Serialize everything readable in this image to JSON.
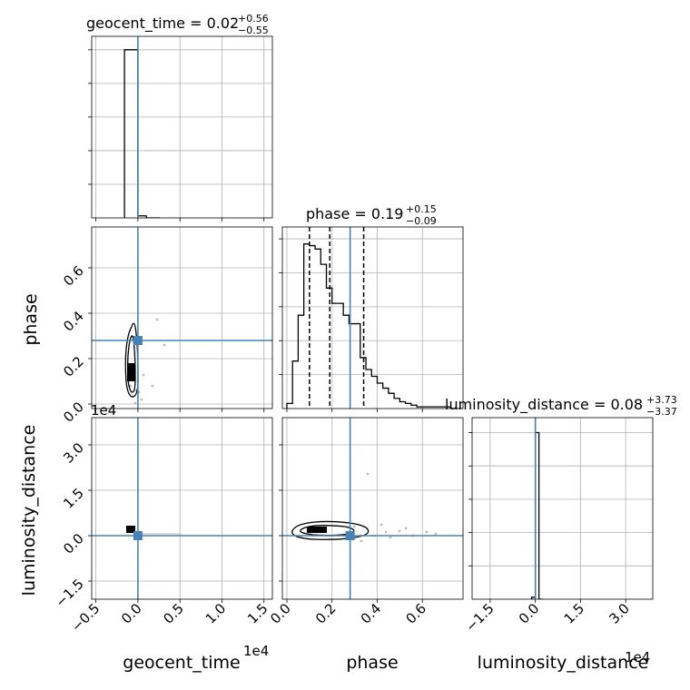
{
  "chart_data": {
    "type": "corner",
    "parameters": [
      "geocent_time",
      "phase",
      "luminosity_distance"
    ],
    "truths": {
      "geocent_time": 0.0,
      "phase": 0.28,
      "luminosity_distance": 0.0
    },
    "colors": {
      "truth": "#4682b4",
      "hist": "#000000",
      "grid": "#b0b0b0",
      "scatter": "#bbbbbb"
    },
    "titles": [
      {
        "param": "geocent_time",
        "main": "geocent_time = 0.02",
        "upper": "+0.56",
        "lower": "−0.55"
      },
      {
        "param": "phase",
        "main": "phase = 0.19",
        "upper": "+0.15",
        "lower": "−0.09"
      },
      {
        "param": "luminosity_distance",
        "main": "luminosity_distance = 0.08",
        "upper": "+3.73",
        "lower": "−3.37"
      }
    ],
    "ranges": {
      "geocent_time": [
        -0.55,
        1.6
      ],
      "phase": [
        -0.02,
        0.78
      ],
      "luminosity_distance": [
        -2.1,
        3.9
      ]
    },
    "exponent_label": "1e4",
    "ticks": {
      "geocent_time": {
        "values": [
          -0.5,
          0.0,
          0.5,
          1.0,
          1.5
        ],
        "labels": [
          "−0.5",
          "0.0",
          "0.5",
          "1.0",
          "1.5"
        ]
      },
      "phase": {
        "values": [
          0.0,
          0.2,
          0.4,
          0.6
        ],
        "labels": [
          "0.0",
          "0.2",
          "0.4",
          "0.6"
        ]
      },
      "luminosity_distance": {
        "values": [
          -1.5,
          0.0,
          1.5,
          3.0
        ],
        "labels": [
          "−1.5",
          "0.0",
          "1.5",
          "3.0"
        ]
      }
    },
    "quantiles": {
      "phase": [
        0.1,
        0.19,
        0.34
      ]
    },
    "hist_geocent_time": {
      "edges": [
        -0.16,
        0.0,
        0.1,
        0.26
      ],
      "counts": [
        1.0,
        0.012,
        0.0
      ]
    },
    "hist_phase": {
      "edges": [
        0.0,
        0.025,
        0.05,
        0.075,
        0.1,
        0.125,
        0.15,
        0.175,
        0.2,
        0.225,
        0.25,
        0.275,
        0.3,
        0.325,
        0.35,
        0.375,
        0.4,
        0.425,
        0.45,
        0.475,
        0.5,
        0.525,
        0.55,
        0.575,
        0.6,
        0.625,
        0.65,
        0.675,
        0.7,
        0.725,
        0.75,
        0.775
      ],
      "counts": [
        0.03,
        0.28,
        0.55,
        0.97,
        0.96,
        0.94,
        0.85,
        0.71,
        0.62,
        0.62,
        0.55,
        0.5,
        0.5,
        0.3,
        0.23,
        0.19,
        0.15,
        0.12,
        0.09,
        0.06,
        0.04,
        0.03,
        0.02,
        0.01,
        0.01,
        0.01,
        0.01,
        0.01,
        0.01,
        0.0,
        0.0
      ]
    },
    "hist_luminosity_distance": {
      "edges": [
        -0.12,
        0.0,
        0.12,
        0.26
      ],
      "counts": [
        0.012,
        1.0,
        0.0
      ]
    },
    "labels": [
      "phase",
      "luminosity_distance",
      "geocent_time",
      "phase",
      "luminosity_distance"
    ]
  }
}
